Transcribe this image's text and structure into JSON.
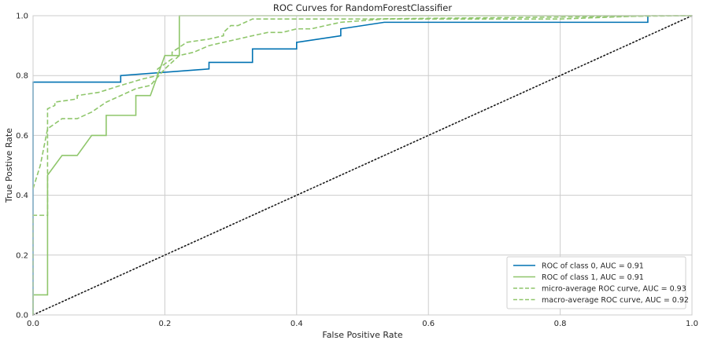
{
  "chart_data": {
    "type": "line",
    "title": "ROC Curves for RandomForestClassifier",
    "xlabel": "False Positive Rate",
    "ylabel": "True Postive Rate",
    "xlim": [
      0,
      1
    ],
    "ylim": [
      0,
      1
    ],
    "xticks": [
      "0.0",
      "0.2",
      "0.4",
      "0.6",
      "0.8",
      "1.0"
    ],
    "yticks": [
      "0.0",
      "0.2",
      "0.4",
      "0.6",
      "0.8",
      "1.0"
    ],
    "grid": true,
    "legend_position": "lower-right",
    "series": [
      {
        "name": "ROC of class 0, AUC = 0.91",
        "color": "#0072b2",
        "dash": "solid",
        "x": [
          0.0,
          0.0,
          0.133,
          0.133,
          0.267,
          0.267,
          0.333,
          0.333,
          0.4,
          0.4,
          0.467,
          0.467,
          0.533,
          0.533,
          0.933,
          0.933
        ],
        "y": [
          0.0,
          0.778,
          0.778,
          0.8,
          0.822,
          0.844,
          0.844,
          0.889,
          0.889,
          0.911,
          0.933,
          0.956,
          0.978,
          0.978,
          0.978,
          1.0
        ]
      },
      {
        "name": "ROC of class 1, AUC = 0.91",
        "color": "#8fc66b",
        "dash": "solid",
        "x": [
          0.0,
          0.0,
          0.022,
          0.022,
          0.044,
          0.067,
          0.089,
          0.111,
          0.111,
          0.156,
          0.156,
          0.178,
          0.2,
          0.222,
          0.222,
          1.0
        ],
        "y": [
          0.0,
          0.067,
          0.067,
          0.467,
          0.533,
          0.533,
          0.6,
          0.6,
          0.667,
          0.667,
          0.733,
          0.733,
          0.867,
          0.867,
          1.0,
          1.0
        ]
      },
      {
        "name": "micro-average ROC curve, AUC = 0.93",
        "color": "#8fc66b",
        "dash": "dashed",
        "x": [
          0.0,
          0.0,
          0.011,
          0.011,
          0.022,
          0.022,
          0.033,
          0.033,
          0.067,
          0.067,
          0.1,
          0.133,
          0.167,
          0.189,
          0.189,
          0.211,
          0.211,
          0.233,
          0.267,
          0.289,
          0.289,
          0.3,
          0.311,
          0.322,
          0.333,
          0.4,
          0.5,
          1.0
        ],
        "y": [
          0.0,
          0.333,
          0.333,
          0.333,
          0.333,
          0.689,
          0.7,
          0.711,
          0.722,
          0.733,
          0.744,
          0.767,
          0.789,
          0.8,
          0.822,
          0.856,
          0.878,
          0.911,
          0.922,
          0.933,
          0.944,
          0.967,
          0.967,
          0.978,
          0.989,
          0.989,
          0.989,
          1.0
        ]
      },
      {
        "name": "macro-average ROC curve, AUC = 0.92",
        "color": "#8fc66b",
        "dash": "dashed",
        "x": [
          0.0,
          0.011,
          0.022,
          0.044,
          0.067,
          0.089,
          0.111,
          0.133,
          0.156,
          0.178,
          0.2,
          0.222,
          0.244,
          0.267,
          0.289,
          0.311,
          0.333,
          0.356,
          0.378,
          0.4,
          0.422,
          0.444,
          0.467,
          0.533,
          0.8,
          0.933,
          1.0
        ],
        "y": [
          0.422,
          0.5,
          0.622,
          0.656,
          0.656,
          0.678,
          0.711,
          0.733,
          0.756,
          0.767,
          0.822,
          0.867,
          0.878,
          0.9,
          0.911,
          0.922,
          0.933,
          0.944,
          0.944,
          0.956,
          0.956,
          0.967,
          0.978,
          0.989,
          0.989,
          1.0,
          1.0
        ]
      }
    ],
    "reference_line": {
      "x": [
        0,
        1
      ],
      "y": [
        0,
        1
      ],
      "color": "#1a1a1a",
      "dash": "dotted"
    }
  }
}
